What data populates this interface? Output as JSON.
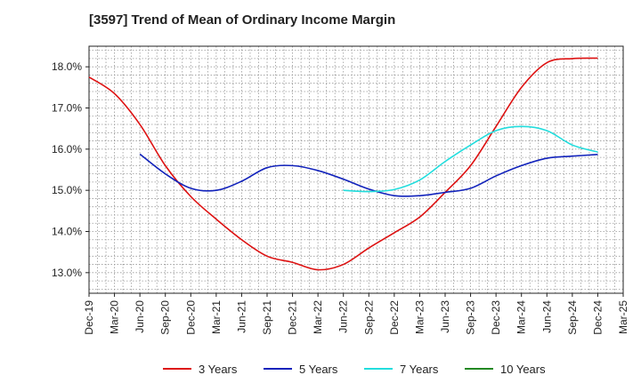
{
  "chart_data": {
    "type": "line",
    "title": "[3597]  Trend of Mean of Ordinary Income Margin",
    "xlabel": "",
    "ylabel": "",
    "x_ticks": [
      "Dec-19",
      "Mar-20",
      "Jun-20",
      "Sep-20",
      "Dec-20",
      "Mar-21",
      "Jun-21",
      "Sep-21",
      "Dec-21",
      "Mar-22",
      "Jun-22",
      "Sep-22",
      "Dec-22",
      "Mar-23",
      "Jun-23",
      "Sep-23",
      "Dec-23",
      "Mar-24",
      "Jun-24",
      "Sep-24",
      "Dec-24",
      "Mar-25"
    ],
    "y_ticks": [
      "13.0%",
      "14.0%",
      "15.0%",
      "16.0%",
      "17.0%",
      "18.0%"
    ],
    "ylim": [
      12.5,
      18.5
    ],
    "grid": true,
    "legend_position": "bottom",
    "series": [
      {
        "name": "3 Years",
        "color": "#dd1111",
        "x": [
          "Dec-19",
          "Mar-20",
          "Jun-20",
          "Sep-20",
          "Dec-20",
          "Mar-21",
          "Jun-21",
          "Sep-21",
          "Dec-21",
          "Mar-22",
          "Jun-22",
          "Sep-22",
          "Dec-22",
          "Mar-23",
          "Jun-23",
          "Sep-23",
          "Dec-23",
          "Mar-24",
          "Jun-24",
          "Sep-24",
          "Dec-24"
        ],
        "values": [
          17.75,
          17.35,
          16.6,
          15.6,
          14.85,
          14.3,
          13.8,
          13.4,
          13.25,
          13.07,
          13.2,
          13.6,
          13.97,
          14.35,
          14.95,
          15.6,
          16.55,
          17.5,
          18.1,
          18.2,
          18.21
        ]
      },
      {
        "name": "5 Years",
        "color": "#1122bb",
        "x": [
          "Jun-20",
          "Sep-20",
          "Dec-20",
          "Mar-21",
          "Jun-21",
          "Sep-21",
          "Dec-21",
          "Mar-22",
          "Jun-22",
          "Sep-22",
          "Dec-22",
          "Mar-23",
          "Jun-23",
          "Sep-23",
          "Dec-23",
          "Mar-24",
          "Jun-24",
          "Sep-24",
          "Dec-24"
        ],
        "values": [
          15.88,
          15.4,
          15.05,
          15.0,
          15.22,
          15.55,
          15.6,
          15.48,
          15.27,
          15.03,
          14.87,
          14.87,
          14.95,
          15.05,
          15.35,
          15.6,
          15.78,
          15.83,
          15.87
        ]
      },
      {
        "name": "7 Years",
        "color": "#22dddd",
        "x": [
          "Jun-22",
          "Sep-22",
          "Dec-22",
          "Mar-23",
          "Jun-23",
          "Sep-23",
          "Dec-23",
          "Mar-24",
          "Jun-24",
          "Sep-24",
          "Dec-24"
        ],
        "values": [
          15.0,
          14.97,
          15.02,
          15.25,
          15.7,
          16.1,
          16.45,
          16.55,
          16.45,
          16.1,
          15.93
        ]
      },
      {
        "name": "10 Years",
        "color": "#228822",
        "x": [],
        "values": []
      }
    ]
  }
}
